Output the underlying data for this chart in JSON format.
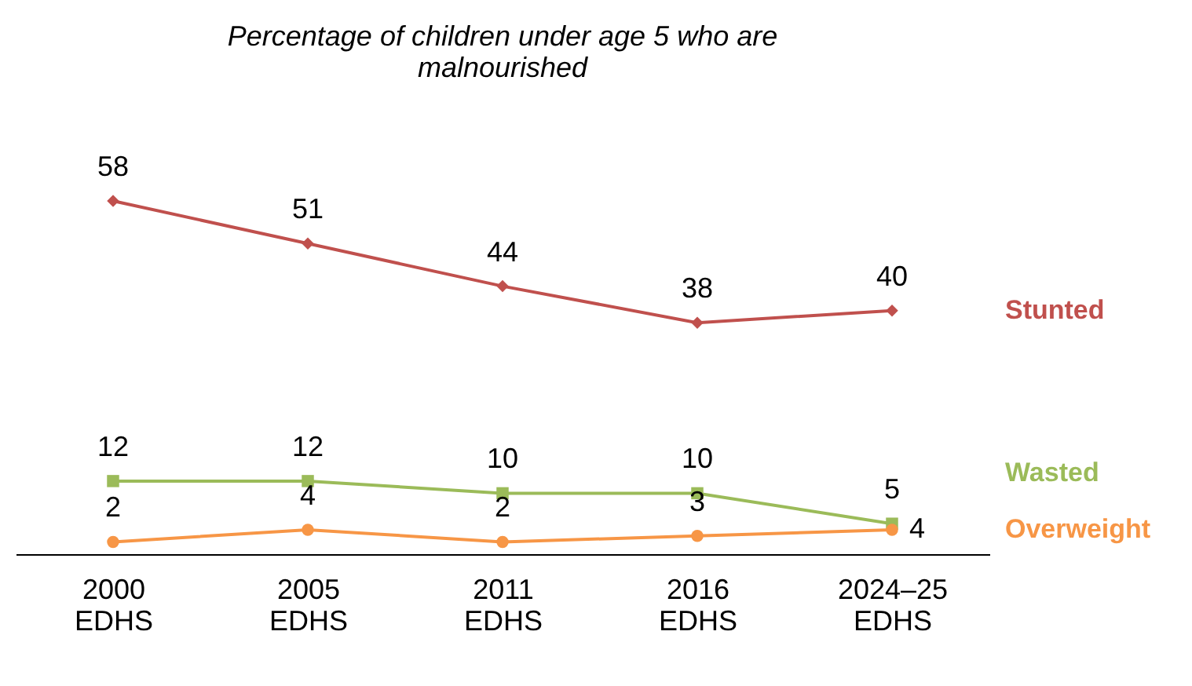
{
  "chart_data": {
    "type": "line",
    "title": "Percentage of children under age 5 who are malnourished",
    "categories": [
      "2000 EDHS",
      "2005 EDHS",
      "2011 EDHS",
      "2016 EDHS",
      "2024–25 EDHS"
    ],
    "series": [
      {
        "name": "Stunted",
        "color": "#c0504d",
        "marker": "diamond",
        "values": [
          58,
          51,
          44,
          38,
          40
        ]
      },
      {
        "name": "Wasted",
        "color": "#9bbb59",
        "marker": "square",
        "values": [
          12,
          12,
          10,
          10,
          5
        ]
      },
      {
        "name": "Overweight",
        "color": "#f79646",
        "marker": "circle",
        "values": [
          2,
          4,
          2,
          3,
          4
        ]
      }
    ],
    "data_labels": true,
    "line_style": "solid"
  }
}
